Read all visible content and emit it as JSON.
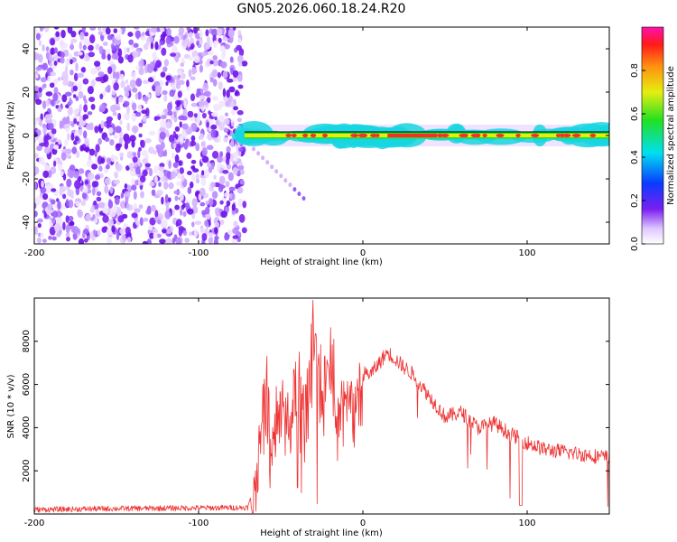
{
  "title": "GN05.2026.060.18.24.R20",
  "colors": {
    "snr_line": "#ee3333",
    "scatter": "#7a1ff0",
    "ridge_core": "#ff2a2a",
    "ridge_edge": "#17d6e0"
  },
  "chart_data": [
    {
      "type": "heatmap",
      "xlabel": "Height of straight line (km)",
      "ylabel": "Frequency (Hz)",
      "xlim": [
        -200,
        150
      ],
      "ylim": [
        -50,
        50
      ],
      "xticks": [
        -200,
        -100,
        0,
        100
      ],
      "yticks": [
        -40,
        -20,
        0,
        20,
        40
      ],
      "noise_region_x": [
        -200,
        -72
      ],
      "ridge": {
        "x_start": -72,
        "x_end": 150,
        "frequency": 0,
        "peak_amplitude": 1.0
      },
      "colorbar": {
        "label": "Normalized spectral amplitude",
        "range": [
          0,
          1
        ],
        "ticks": [
          "0.0",
          "0.2",
          "0.4",
          "0.6",
          "0.8"
        ],
        "tick_values": [
          0.0,
          0.2,
          0.4,
          0.6,
          0.8
        ]
      },
      "grid": false
    },
    {
      "type": "line",
      "xlabel": "Height of straight line (km)",
      "ylabel": "SNR (10 * v/v)",
      "xlim": [
        -200,
        150
      ],
      "ylim": [
        0,
        10000
      ],
      "xticks": [
        -200,
        -100,
        0,
        100
      ],
      "yticks": [
        2000,
        4000,
        6000,
        8000
      ],
      "series": [
        {
          "x": [
            -200,
            -150,
            -100,
            -70,
            -65,
            -60,
            -55,
            -50,
            -45,
            -40,
            -35,
            -30,
            -25,
            -20,
            -15,
            -10,
            -5,
            0,
            5,
            15,
            25,
            30,
            40,
            50,
            60,
            70,
            80,
            90,
            100,
            110,
            120,
            130,
            140,
            150
          ],
          "values": [
            200,
            250,
            280,
            300,
            1500,
            7000,
            3500,
            6000,
            4500,
            7500,
            5500,
            9500,
            6000,
            8800,
            5000,
            6500,
            5500,
            6500,
            6500,
            7500,
            6800,
            6500,
            5500,
            4500,
            4700,
            4000,
            4200,
            3700,
            3300,
            3000,
            2900,
            2800,
            2700,
            2600
          ]
        }
      ],
      "grid": false
    }
  ]
}
